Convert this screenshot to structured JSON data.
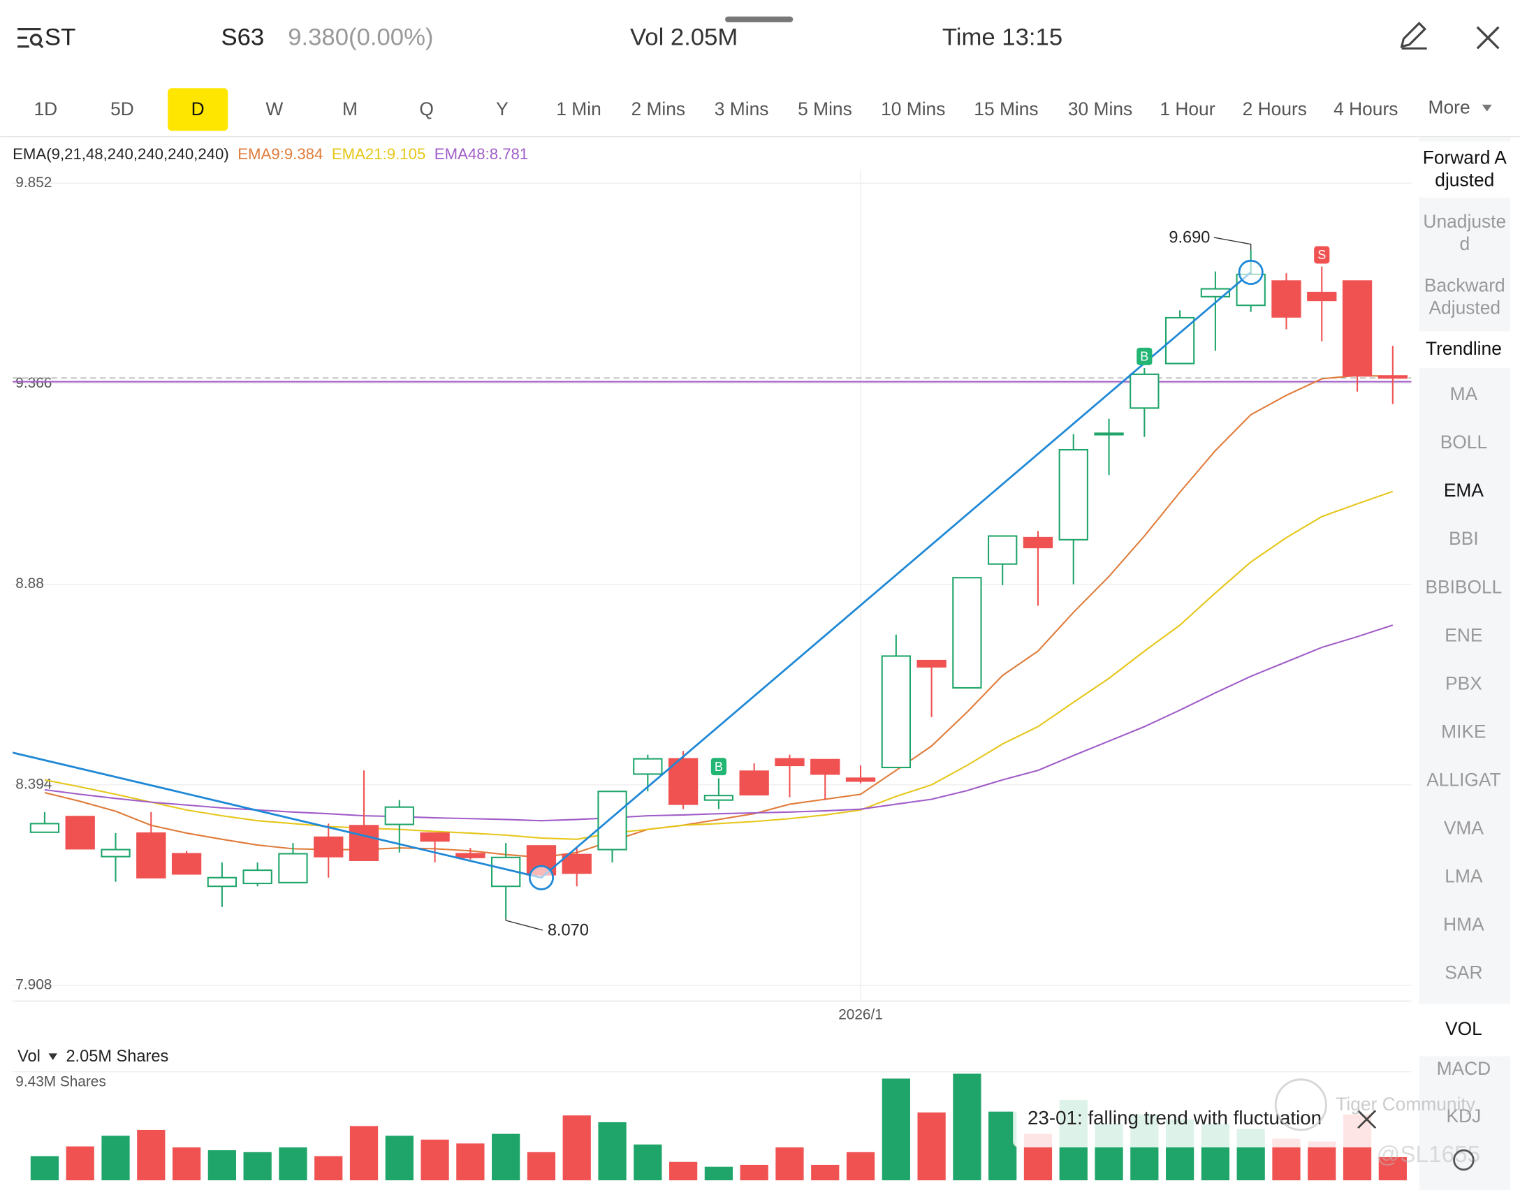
{
  "header": {
    "logo": "ST",
    "symbol": "S63",
    "price": "9.380(0.00%)",
    "volume": "Vol 2.05M",
    "time": "Time 13:15"
  },
  "tabs": {
    "items": [
      "1D",
      "5D",
      "D",
      "W",
      "M",
      "Q",
      "Y",
      "1 Min",
      "2 Mins",
      "3 Mins",
      "5 Mins",
      "10 Mins",
      "15 Mins",
      "30 Mins",
      "1 Hour",
      "2 Hours",
      "4 Hours"
    ],
    "selected": 2,
    "more": "More"
  },
  "side_menu": {
    "adjust": [
      "Forward Adjusted",
      "Unadjusted",
      "Backward Adjusted"
    ],
    "adjust_active": 0,
    "tools": [
      "Trendline"
    ],
    "main_indicators": [
      "MA",
      "BOLL",
      "EMA",
      "BBI",
      "BBIBOLL",
      "ENE",
      "PBX",
      "MIKE",
      "ALLIGAT",
      "VMA",
      "LMA",
      "HMA",
      "SAR"
    ],
    "main_active": 2,
    "sub_indicators": [
      "VOL",
      "MACD",
      "KDJ"
    ],
    "sub_active": 0
  },
  "chart_data": {
    "type": "candlestick",
    "indicator_label": "EMA(9,21,48,240,240,240,240)",
    "ylim": [
      7.87,
      9.885
    ],
    "yticks": [
      9.852,
      9.366,
      8.88,
      8.394,
      7.908
    ],
    "grid": true,
    "rise_color": "#1fa56a",
    "fall_color": "#f05252",
    "open": [
      8.279,
      8.317,
      8.22,
      8.277,
      8.227,
      8.148,
      8.155,
      8.157,
      8.267,
      8.295,
      8.298,
      8.277,
      8.227,
      8.148,
      8.246,
      8.225,
      8.237,
      8.42,
      8.457,
      8.357,
      8.427,
      8.457,
      8.455,
      8.41,
      8.436,
      8.695,
      8.629,
      8.929,
      8.993,
      8.988,
      9.244,
      9.307,
      9.415,
      9.577,
      9.556,
      9.615,
      9.587,
      9.615,
      9.385
    ],
    "high": [
      8.328,
      8.317,
      8.277,
      8.328,
      8.234,
      8.206,
      8.206,
      8.253,
      8.3,
      8.429,
      8.357,
      8.277,
      8.241,
      8.253,
      8.246,
      8.241,
      8.378,
      8.467,
      8.476,
      8.41,
      8.446,
      8.467,
      8.455,
      8.441,
      8.758,
      8.695,
      8.896,
      8.997,
      9.009,
      9.244,
      9.281,
      9.404,
      9.544,
      9.638,
      9.69,
      9.634,
      9.65,
      9.615,
      9.458
    ],
    "low": [
      8.279,
      8.239,
      8.159,
      8.169,
      8.178,
      8.098,
      8.148,
      8.157,
      8.169,
      8.211,
      8.23,
      8.206,
      8.213,
      8.07,
      8.169,
      8.148,
      8.206,
      8.378,
      8.335,
      8.335,
      8.37,
      8.364,
      8.357,
      8.398,
      8.436,
      8.558,
      8.629,
      8.878,
      8.828,
      8.88,
      9.145,
      9.237,
      9.415,
      9.446,
      9.54,
      9.498,
      9.469,
      9.347,
      9.317
    ],
    "close": [
      8.3,
      8.239,
      8.237,
      8.169,
      8.178,
      8.169,
      8.187,
      8.227,
      8.22,
      8.211,
      8.34,
      8.258,
      8.218,
      8.218,
      8.176,
      8.18,
      8.378,
      8.457,
      8.347,
      8.368,
      8.37,
      8.441,
      8.42,
      8.403,
      8.706,
      8.68,
      8.896,
      8.997,
      8.969,
      9.206,
      9.246,
      9.389,
      9.526,
      9.596,
      9.631,
      9.528,
      9.568,
      9.385,
      9.38
    ],
    "series": [
      {
        "name": "EMA9:9.384",
        "color": "#e07b39",
        "values": [
          8.375,
          8.354,
          8.33,
          8.296,
          8.277,
          8.262,
          8.248,
          8.239,
          8.237,
          8.237,
          8.241,
          8.239,
          8.234,
          8.225,
          8.218,
          8.23,
          8.258,
          8.286,
          8.296,
          8.31,
          8.324,
          8.347,
          8.359,
          8.371,
          8.429,
          8.488,
          8.57,
          8.659,
          8.718,
          8.812,
          8.899,
          8.997,
          9.103,
          9.204,
          9.291,
          9.338,
          9.378,
          9.386,
          9.384
        ]
      },
      {
        "name": "EMA21:9.105",
        "color": "#e6c619",
        "values": [
          8.406,
          8.389,
          8.371,
          8.352,
          8.333,
          8.319,
          8.307,
          8.3,
          8.293,
          8.289,
          8.286,
          8.281,
          8.277,
          8.272,
          8.265,
          8.262,
          8.277,
          8.286,
          8.296,
          8.3,
          8.305,
          8.312,
          8.321,
          8.333,
          8.366,
          8.394,
          8.441,
          8.493,
          8.535,
          8.594,
          8.652,
          8.718,
          8.781,
          8.859,
          8.934,
          8.993,
          9.044,
          9.075,
          9.105
        ]
      },
      {
        "name": "EMA48:8.781",
        "color": "#a05cc8",
        "values": [
          8.382,
          8.371,
          8.361,
          8.352,
          8.345,
          8.338,
          8.333,
          8.328,
          8.324,
          8.319,
          8.317,
          8.314,
          8.312,
          8.31,
          8.307,
          8.31,
          8.314,
          8.319,
          8.321,
          8.324,
          8.326,
          8.328,
          8.331,
          8.335,
          8.347,
          8.359,
          8.38,
          8.406,
          8.429,
          8.465,
          8.5,
          8.535,
          8.575,
          8.617,
          8.657,
          8.692,
          8.727,
          8.753,
          8.781
        ]
      }
    ],
    "price_line": 9.38,
    "reference_line": {
      "value": 9.371,
      "color": "#a05cc8"
    },
    "x_label": {
      "label": "2026/1",
      "candle": 23
    },
    "high_label": {
      "label": "9.690",
      "candle": 34
    },
    "low_label": {
      "label": "8.070",
      "candle": 13
    },
    "signals": [
      {
        "label": "B",
        "candle": 19,
        "color": "#22b573"
      },
      {
        "label": "B",
        "candle": 31,
        "color": "#22b573"
      },
      {
        "label": "S",
        "candle": 36,
        "color": "#f05252"
      }
    ],
    "trendline": {
      "color": "#1e88d6",
      "points": [
        {
          "candle": -0.9,
          "price": 8.472
        },
        {
          "candle": 14,
          "price": 8.169
        },
        {
          "candle": 34,
          "price": 9.636
        }
      ]
    },
    "volume": {
      "label": "Vol",
      "value_label": "2.05M Shares",
      "max_label": "9.43M Shares",
      "ylim": [
        0,
        9.43
      ],
      "values": [
        2.14,
        3.0,
        3.94,
        4.46,
        2.91,
        2.66,
        2.49,
        2.91,
        2.14,
        4.8,
        3.94,
        3.6,
        3.26,
        4.11,
        2.49,
        5.74,
        5.14,
        3.17,
        1.63,
        1.2,
        1.37,
        2.91,
        1.37,
        2.49,
        9.0,
        6.0,
        9.43,
        6.08,
        4.11,
        7.11,
        4.97,
        5.83,
        5.4,
        4.97,
        4.54,
        3.68,
        3.43,
        5.83,
        2.05
      ]
    }
  },
  "toast": {
    "text": "23-01: falling trend with fluctuation"
  },
  "watermark": {
    "brand": "Tiger Community",
    "user": "@SL1655"
  }
}
